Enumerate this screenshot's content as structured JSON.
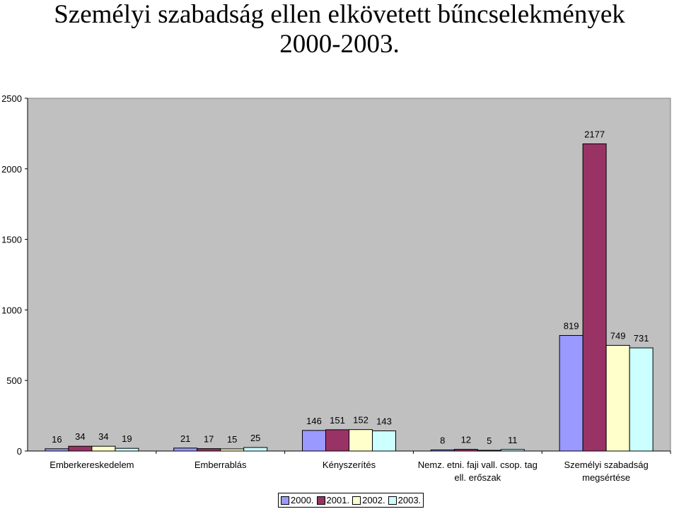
{
  "title_lines": [
    "Személyi szabadság ellen elkövetett bűncselekmények",
    "2000-2003."
  ],
  "chart_data": {
    "type": "bar",
    "title": "Személyi szabadság ellen elkövetett bűncselekmények 2000-2003.",
    "categories": [
      [
        "Emberkereskedelem"
      ],
      [
        "Emberrablás"
      ],
      [
        "Kényszerítés"
      ],
      [
        "Nemz. etni. faji vall. csop. tag",
        "ell. erőszak"
      ],
      [
        "Személyi szabadság",
        "megsértése"
      ]
    ],
    "series": [
      {
        "name": "2000.",
        "color": "#9999ff",
        "values": [
          16,
          21,
          146,
          8,
          819
        ]
      },
      {
        "name": "2001.",
        "color": "#993366",
        "values": [
          34,
          17,
          151,
          12,
          2177
        ]
      },
      {
        "name": "2002.",
        "color": "#ffffcc",
        "values": [
          34,
          15,
          152,
          5,
          749
        ]
      },
      {
        "name": "2003.",
        "color": "#ccffff",
        "values": [
          19,
          25,
          143,
          11,
          731
        ]
      }
    ],
    "yticks": [
      "0",
      "500",
      "1000",
      "1500",
      "2000",
      "2500"
    ],
    "ylim": [
      0,
      2500
    ],
    "grid": false,
    "plot_background": "#c0c0c0",
    "legend_position": "bottom"
  }
}
